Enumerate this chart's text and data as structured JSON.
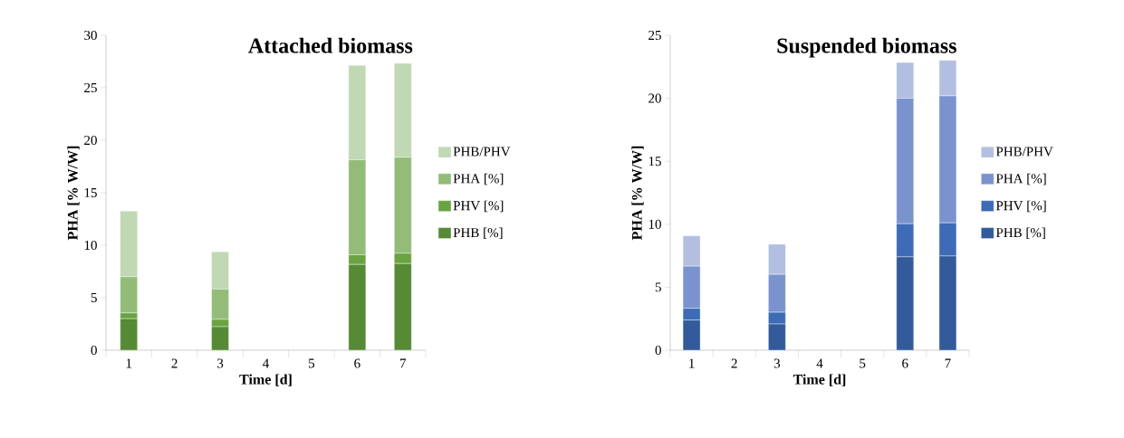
{
  "chart_data": [
    {
      "type": "bar",
      "title": "Attached biomass",
      "xlabel": "Time [d]",
      "ylabel": "PHA [% W/W]",
      "stacked": true,
      "legend": "right",
      "categories": [
        "1",
        "2",
        "3",
        "4",
        "5",
        "6",
        "7"
      ],
      "ylim": [
        0,
        30
      ],
      "yticks": [
        0,
        5,
        10,
        15,
        20,
        25,
        30
      ],
      "series": [
        {
          "name": "PHB [%]",
          "color": "#568a35",
          "values": [
            3.0,
            null,
            2.24,
            null,
            null,
            8.17,
            8.26
          ]
        },
        {
          "name": "PHV [%]",
          "color": "#6aa341",
          "values": [
            0.55,
            null,
            0.69,
            null,
            null,
            0.92,
            0.97
          ]
        },
        {
          "name": "PHA [%]",
          "color": "#93bc79",
          "values": [
            3.45,
            null,
            2.89,
            null,
            null,
            9.06,
            9.15
          ]
        },
        {
          "name": "PHB/PHV",
          "color": "#c0d8b4",
          "values": [
            6.25,
            null,
            3.56,
            null,
            null,
            8.98,
            8.95
          ]
        }
      ]
    },
    {
      "type": "bar",
      "title": "Suspended biomass",
      "xlabel": "Time [d]",
      "ylabel": "PHA [% W/W]",
      "stacked": true,
      "legend": "right",
      "categories": [
        "1",
        "2",
        "3",
        "4",
        "5",
        "6",
        "7"
      ],
      "ylim": [
        0,
        25
      ],
      "yticks": [
        0,
        5,
        10,
        15,
        20,
        25
      ],
      "series": [
        {
          "name": "PHB [%]",
          "color": "#335a9a",
          "values": [
            2.39,
            null,
            2.08,
            null,
            null,
            7.41,
            7.48
          ]
        },
        {
          "name": "PHV [%]",
          "color": "#3d6bb6",
          "values": [
            0.93,
            null,
            0.93,
            null,
            null,
            2.63,
            2.63
          ]
        },
        {
          "name": "PHA [%]",
          "color": "#7a93cf",
          "values": [
            3.35,
            null,
            3.01,
            null,
            null,
            9.96,
            10.08
          ]
        },
        {
          "name": "PHB/PHV",
          "color": "#b3bfe0",
          "values": [
            2.41,
            null,
            2.39,
            null,
            null,
            2.84,
            2.82
          ]
        }
      ]
    }
  ]
}
